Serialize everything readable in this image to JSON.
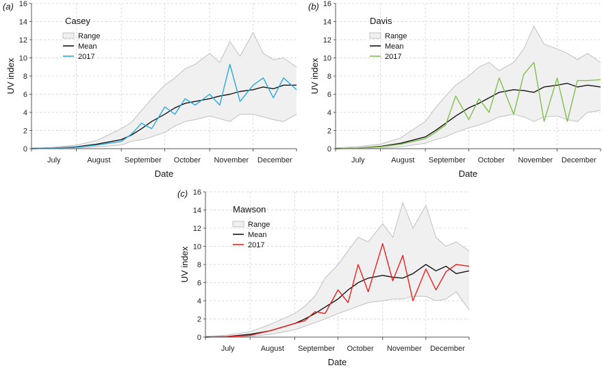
{
  "chart_data": [
    {
      "type": "line",
      "panel_label": "(a)",
      "station": "Casey",
      "xlabel": "Date",
      "ylabel": "UV index",
      "ylim": [
        0,
        16
      ],
      "yticks": [
        0,
        2,
        4,
        6,
        8,
        10,
        12,
        14,
        16
      ],
      "xlim": [
        "07-01",
        "12-31"
      ],
      "month_labels": [
        "July",
        "August",
        "September",
        "October",
        "November",
        "December"
      ],
      "grid": true,
      "legend": {
        "position": "top-left",
        "entries": [
          "Range",
          "Mean",
          "2017"
        ]
      },
      "series": [
        {
          "name": "Range",
          "kind": "band",
          "color": "#c0c0c0",
          "fill": "#f0f0f0",
          "x": [
            "07-01",
            "07-15",
            "08-01",
            "08-15",
            "09-01",
            "09-08",
            "09-15",
            "09-22",
            "10-01",
            "10-08",
            "10-15",
            "10-22",
            "11-01",
            "11-08",
            "11-15",
            "11-22",
            "12-01",
            "12-08",
            "12-15",
            "12-22",
            "12-31"
          ],
          "low": [
            0,
            0,
            0.05,
            0.2,
            0.4,
            0.8,
            1.0,
            1.3,
            1.8,
            2.5,
            3.0,
            3.2,
            3.6,
            3.3,
            3.0,
            3.8,
            3.8,
            3.5,
            3.2,
            3.0,
            3.8
          ],
          "high": [
            0.1,
            0.15,
            0.4,
            0.9,
            2.2,
            2.9,
            4.2,
            5.5,
            7.0,
            7.8,
            8.8,
            9.3,
            10.5,
            9.5,
            11.8,
            10.2,
            12.8,
            10.5,
            9.8,
            10.0,
            9.0
          ]
        },
        {
          "name": "Mean",
          "kind": "line",
          "color": "#111111",
          "x": [
            "07-01",
            "07-15",
            "08-01",
            "08-15",
            "09-01",
            "09-08",
            "09-15",
            "09-22",
            "10-01",
            "10-08",
            "10-15",
            "10-22",
            "11-01",
            "11-08",
            "11-15",
            "11-22",
            "12-01",
            "12-08",
            "12-15",
            "12-22",
            "12-31"
          ],
          "y": [
            0,
            0.05,
            0.2,
            0.5,
            1.0,
            1.5,
            2.2,
            3.0,
            3.8,
            4.5,
            5.0,
            5.2,
            5.5,
            5.8,
            6.0,
            6.3,
            6.5,
            6.8,
            6.6,
            7.0,
            7.0
          ]
        },
        {
          "name": "2017",
          "kind": "line",
          "color": "#29a9dc",
          "x": [
            "07-01",
            "07-15",
            "08-01",
            "08-15",
            "09-01",
            "09-08",
            "09-15",
            "09-22",
            "10-01",
            "10-08",
            "10-15",
            "10-22",
            "11-01",
            "11-08",
            "11-15",
            "11-22",
            "12-01",
            "12-08",
            "12-15",
            "12-22",
            "12-31"
          ],
          "y": [
            0,
            0.05,
            0.15,
            0.4,
            0.8,
            1.6,
            2.8,
            2.2,
            4.6,
            3.8,
            5.5,
            4.8,
            6.0,
            4.8,
            9.3,
            5.2,
            7.0,
            7.8,
            5.6,
            7.8,
            6.5
          ]
        }
      ]
    },
    {
      "type": "line",
      "panel_label": "(b)",
      "station": "Davis",
      "xlabel": "Date",
      "ylabel": "UV index",
      "ylim": [
        0,
        16
      ],
      "yticks": [
        0,
        2,
        4,
        6,
        8,
        10,
        12,
        14,
        16
      ],
      "xlim": [
        "07-01",
        "12-31"
      ],
      "month_labels": [
        "July",
        "August",
        "September",
        "October",
        "November",
        "December"
      ],
      "grid": true,
      "legend": {
        "position": "top-left",
        "entries": [
          "Range",
          "Mean",
          "2017"
        ]
      },
      "series": [
        {
          "name": "Range",
          "kind": "band",
          "color": "#c0c0c0",
          "fill": "#f0f0f0",
          "x": [
            "07-01",
            "07-15",
            "08-01",
            "08-15",
            "09-01",
            "09-08",
            "09-15",
            "09-22",
            "10-01",
            "10-08",
            "10-15",
            "10-22",
            "11-01",
            "11-08",
            "11-15",
            "11-22",
            "12-01",
            "12-08",
            "12-15",
            "12-22",
            "12-31"
          ],
          "low": [
            0,
            0,
            0.05,
            0.2,
            0.6,
            1.0,
            1.3,
            1.8,
            2.3,
            2.6,
            3.0,
            3.5,
            3.8,
            3.5,
            3.0,
            3.5,
            3.6,
            3.2,
            3.0,
            4.0,
            4.2
          ],
          "high": [
            0.1,
            0.2,
            0.5,
            1.2,
            3.0,
            4.5,
            5.8,
            7.0,
            8.0,
            9.0,
            9.5,
            8.6,
            9.5,
            11.0,
            13.5,
            11.5,
            11.0,
            10.5,
            9.8,
            10.5,
            9.5
          ]
        },
        {
          "name": "Mean",
          "kind": "line",
          "color": "#111111",
          "x": [
            "07-01",
            "07-15",
            "08-01",
            "08-15",
            "09-01",
            "09-08",
            "09-15",
            "09-22",
            "10-01",
            "10-08",
            "10-15",
            "10-22",
            "11-01",
            "11-08",
            "11-15",
            "11-22",
            "12-01",
            "12-08",
            "12-15",
            "12-22",
            "12-31"
          ],
          "y": [
            0,
            0.05,
            0.25,
            0.6,
            1.3,
            2.0,
            2.8,
            3.6,
            4.5,
            5.0,
            5.6,
            6.2,
            6.5,
            6.4,
            6.2,
            6.8,
            7.0,
            7.2,
            6.8,
            7.0,
            6.8
          ]
        },
        {
          "name": "2017",
          "kind": "line",
          "color": "#7fbf4d",
          "x": [
            "07-01",
            "07-15",
            "08-01",
            "08-15",
            "09-01",
            "09-08",
            "09-15",
            "09-22",
            "10-01",
            "10-08",
            "10-15",
            "10-22",
            "11-01",
            "11-08",
            "11-15",
            "11-22",
            "12-01",
            "12-08",
            "12-15",
            "12-22",
            "12-31"
          ],
          "y": [
            0,
            0.05,
            0.2,
            0.5,
            1.1,
            1.8,
            2.6,
            5.8,
            3.2,
            5.5,
            4.0,
            7.8,
            3.8,
            8.2,
            9.5,
            3.0,
            7.8,
            3.0,
            7.5,
            7.5,
            7.6
          ]
        }
      ]
    },
    {
      "type": "line",
      "panel_label": "(c)",
      "station": "Mawson",
      "xlabel": "Date",
      "ylabel": "UV index",
      "ylim": [
        0,
        16
      ],
      "yticks": [
        0,
        2,
        4,
        6,
        8,
        10,
        12,
        14,
        16
      ],
      "xlim": [
        "07-01",
        "12-31"
      ],
      "month_labels": [
        "July",
        "August",
        "September",
        "October",
        "November",
        "December"
      ],
      "grid": true,
      "legend": {
        "position": "top-left",
        "entries": [
          "Range",
          "Mean",
          "2017"
        ]
      },
      "series": [
        {
          "name": "Range",
          "kind": "band",
          "color": "#c0c0c0",
          "fill": "#f0f0f0",
          "x": [
            "07-01",
            "07-15",
            "08-01",
            "08-15",
            "09-01",
            "09-08",
            "09-15",
            "09-22",
            "10-01",
            "10-08",
            "10-15",
            "10-22",
            "11-01",
            "11-08",
            "11-15",
            "11-22",
            "12-01",
            "12-08",
            "12-15",
            "12-22",
            "12-31"
          ],
          "low": [
            0,
            0,
            0.1,
            0.3,
            0.8,
            1.2,
            1.6,
            2.0,
            2.6,
            3.0,
            3.4,
            3.8,
            4.0,
            4.2,
            4.2,
            4.5,
            4.5,
            4.0,
            4.2,
            5.0,
            3.0
          ],
          "high": [
            0.1,
            0.2,
            0.6,
            1.4,
            2.6,
            3.4,
            4.5,
            6.5,
            8.0,
            9.5,
            11.0,
            10.5,
            12.5,
            11.0,
            14.8,
            12.0,
            14.5,
            11.0,
            10.0,
            10.5,
            9.5
          ]
        },
        {
          "name": "Mean",
          "kind": "line",
          "color": "#111111",
          "x": [
            "07-01",
            "07-15",
            "08-01",
            "08-15",
            "09-01",
            "09-08",
            "09-15",
            "09-22",
            "10-01",
            "10-08",
            "10-15",
            "10-22",
            "11-01",
            "11-08",
            "11-15",
            "11-22",
            "12-01",
            "12-08",
            "12-15",
            "12-22",
            "12-31"
          ],
          "y": [
            0,
            0.05,
            0.3,
            0.7,
            1.5,
            2.0,
            2.6,
            3.3,
            4.2,
            5.2,
            6.0,
            6.5,
            6.8,
            6.6,
            6.5,
            7.0,
            8.0,
            7.3,
            7.8,
            7.0,
            7.3
          ]
        },
        {
          "name": "2017",
          "kind": "line",
          "color": "#e8211f",
          "x": [
            "07-01",
            "07-15",
            "08-01",
            "08-15",
            "09-01",
            "09-08",
            "09-15",
            "09-22",
            "10-01",
            "10-08",
            "10-15",
            "10-22",
            "11-01",
            "11-08",
            "11-15",
            "11-22",
            "12-01",
            "12-08",
            "12-15",
            "12-22",
            "12-31"
          ],
          "y": [
            0,
            0.05,
            0.2,
            0.7,
            1.5,
            1.8,
            2.8,
            2.6,
            5.2,
            3.8,
            8.0,
            5.0,
            10.3,
            6.2,
            9.0,
            4.0,
            7.5,
            5.2,
            7.2,
            8.0,
            7.8
          ]
        }
      ]
    }
  ]
}
